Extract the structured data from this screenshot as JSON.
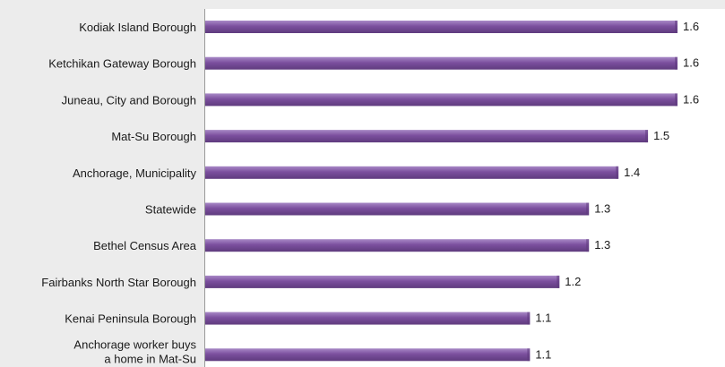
{
  "chart_data": {
    "type": "bar",
    "orientation": "horizontal",
    "title": "",
    "xlabel": "",
    "ylabel": "",
    "categories": [
      "Kodiak Island Borough",
      "Ketchikan Gateway Borough",
      "Juneau, City and Borough",
      "Mat-Su Borough",
      "Anchorage, Municipality",
      "Statewide",
      "Bethel Census Area",
      "Fairbanks North Star Borough",
      "Kenai Peninsula Borough",
      "Anchorage worker buys a home in Mat-Su"
    ],
    "values": [
      1.6,
      1.6,
      1.6,
      1.5,
      1.4,
      1.3,
      1.3,
      1.2,
      1.1,
      1.1
    ],
    "value_labels": [
      "1.6",
      "1.6",
      "1.6",
      "1.5",
      "1.4",
      "1.3",
      "1.3",
      "1.2",
      "1.1",
      "1.1"
    ],
    "xlim": [
      0,
      1.6
    ],
    "grid": false,
    "legend": "none",
    "colors": {
      "bar": "#7b4f9e",
      "bar_light": "#a889c6",
      "bar_dark": "#5f3b7e",
      "background": "#ececec",
      "plot_background": "#ffffff",
      "axis": "#9a9a9a"
    }
  }
}
